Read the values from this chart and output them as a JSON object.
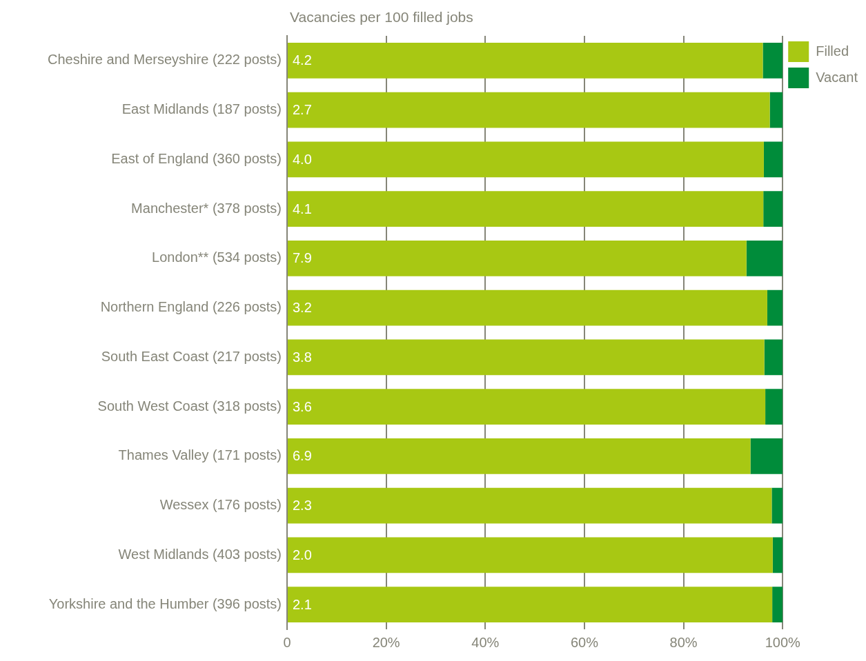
{
  "chart_data": {
    "type": "bar",
    "orientation": "horizontal",
    "stacked": true,
    "title": "Vacancies per 100 filled jobs",
    "categories": [
      "Cheshire and Merseyshire (222 posts)",
      "East Midlands (187 posts)",
      "East of England (360 posts)",
      "Manchester* (378 posts)",
      "London** (534 posts)",
      "Northern England (226 posts)",
      "South East Coast (217 posts)",
      "South West Coast (318 posts)",
      "Thames Valley (171 posts)",
      "Wessex (176 posts)",
      "West Midlands (403 posts)",
      "Yorkshire and the Humber (396 posts)"
    ],
    "series": [
      {
        "name": "Filled",
        "color": "#a8c813",
        "values": [
          96.0,
          97.4,
          96.2,
          96.1,
          92.7,
          96.9,
          96.3,
          96.5,
          93.5,
          97.8,
          98.0,
          97.9
        ]
      },
      {
        "name": "Vacant",
        "color": "#008c3a",
        "values": [
          4.0,
          2.6,
          3.8,
          3.9,
          7.3,
          3.1,
          3.7,
          3.5,
          6.5,
          2.2,
          2.0,
          2.1
        ]
      }
    ],
    "xlim": [
      0,
      100
    ],
    "xticks": [
      {
        "value": 0,
        "label": "0"
      },
      {
        "value": 20,
        "label": "20%"
      },
      {
        "value": 40,
        "label": "40%"
      },
      {
        "value": 60,
        "label": "60%"
      },
      {
        "value": 80,
        "label": "80%"
      },
      {
        "value": 100,
        "label": "100%"
      }
    ],
    "grid": "x",
    "legend": "top right",
    "annotations": [
      {
        "text": "4.2",
        "y": "Cheshire and Merseyshire (222 posts)"
      },
      {
        "text": "2.7",
        "y": "East Midlands (187 posts)"
      },
      {
        "text": "4.0",
        "y": "East of England (360 posts)"
      },
      {
        "text": "4.1",
        "y": "Manchester* (378 posts)"
      },
      {
        "text": "7.9",
        "y": "London** (534 posts)"
      },
      {
        "text": "3.2",
        "y": "Northern England (226 posts)"
      },
      {
        "text": "3.8",
        "y": "South East Coast (217 posts)"
      },
      {
        "text": "3.6",
        "y": "South West Coast (318 posts)"
      },
      {
        "text": "6.9",
        "y": "Thames Valley (171 posts)"
      },
      {
        "text": "2.3",
        "y": "Wessex (176 posts)"
      },
      {
        "text": "2.0",
        "y": "West Midlands (403 posts)"
      },
      {
        "text": "2.1",
        "y": "Yorkshire and the Humber (396 posts)"
      }
    ]
  }
}
